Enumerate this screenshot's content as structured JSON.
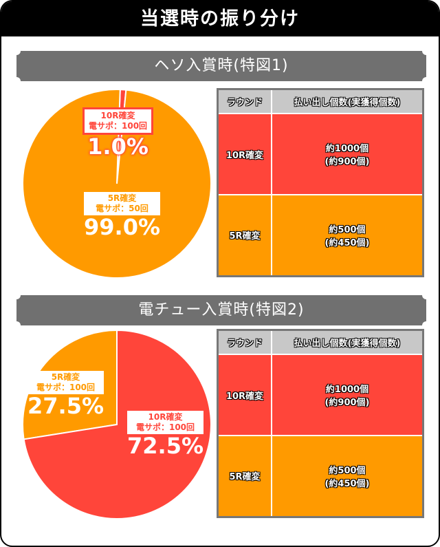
{
  "title": "当選時の振り分け",
  "colors": {
    "red": "#ff453a",
    "orange": "#ff9a00",
    "banner": "#707070"
  },
  "chart_data": [
    {
      "type": "pie",
      "title": "ヘソ入賞時(特図1)",
      "slices": [
        {
          "label": "10R確変",
          "sub": "電サポ：100回",
          "value": 1.0,
          "pct": "1.0%",
          "color": "#ff453a"
        },
        {
          "label": "5R確変",
          "sub": "電サポ：50回",
          "value": 99.0,
          "pct": "99.0%",
          "color": "#ff9a00"
        }
      ]
    },
    {
      "type": "pie",
      "title": "電チュー入賞時(特図2)",
      "slices": [
        {
          "label": "10R確変",
          "sub": "電サポ：100回",
          "value": 72.5,
          "pct": "72.5%",
          "color": "#ff453a"
        },
        {
          "label": "5R確変",
          "sub": "電サポ：100回",
          "value": 27.5,
          "pct": "27.5%",
          "color": "#ff9a00"
        }
      ]
    }
  ],
  "tables": [
    {
      "headers": [
        "ラウンド",
        "払い出し個数(実獲得個数)"
      ],
      "rows": [
        {
          "round": "10R確変",
          "payout": "約1000個",
          "net": "(約900個)"
        },
        {
          "round": "5R確変",
          "payout": "約500個",
          "net": "(約450個)"
        }
      ]
    },
    {
      "headers": [
        "ラウンド",
        "払い出し個数(実獲得個数)"
      ],
      "rows": [
        {
          "round": "10R確変",
          "payout": "約1000個",
          "net": "(約900個)"
        },
        {
          "round": "5R確変",
          "payout": "約500個",
          "net": "(約450個)"
        }
      ]
    }
  ]
}
